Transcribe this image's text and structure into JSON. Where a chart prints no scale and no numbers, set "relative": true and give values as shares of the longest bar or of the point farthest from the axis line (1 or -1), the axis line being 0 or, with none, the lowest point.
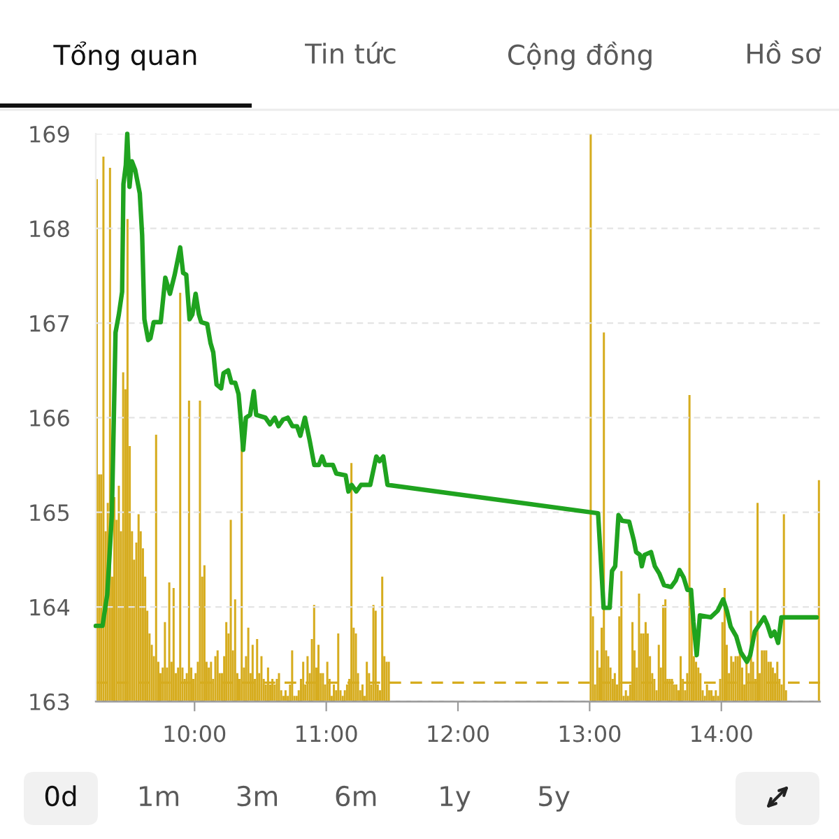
{
  "chart_data": [
    {
      "type": "bar",
      "relative": true,
      "color": "#d6ac1e",
      "xlim": [
        9.25,
        14.75
      ],
      "tick_labels": false,
      "x": [
        9.25,
        9.267,
        9.283,
        9.3,
        9.317,
        9.333,
        9.35,
        9.367,
        9.383,
        9.4,
        9.417,
        9.433,
        9.45,
        9.467,
        9.483,
        9.5,
        9.517,
        9.533,
        9.55,
        9.567,
        9.583,
        9.6,
        9.617,
        9.633,
        9.65,
        9.667,
        9.683,
        9.7,
        9.717,
        9.733,
        9.75,
        9.767,
        9.783,
        9.8,
        9.817,
        9.833,
        9.85,
        9.867,
        9.883,
        9.9,
        9.917,
        9.933,
        9.95,
        9.967,
        9.983,
        10,
        10.017,
        10.033,
        10.05,
        10.067,
        10.083,
        10.1,
        10.117,
        10.133,
        10.15,
        10.167,
        10.183,
        10.2,
        10.217,
        10.233,
        10.25,
        10.267,
        10.283,
        10.3,
        10.317,
        10.333,
        10.35,
        10.367,
        10.383,
        10.4,
        10.417,
        10.433,
        10.45,
        10.467,
        10.483,
        10.5,
        10.517,
        10.533,
        10.55,
        10.567,
        10.583,
        10.6,
        10.617,
        10.633,
        10.65,
        10.667,
        10.683,
        10.7,
        10.717,
        10.733,
        10.75,
        10.767,
        10.783,
        10.8,
        10.817,
        10.833,
        10.85,
        10.867,
        10.883,
        10.9,
        10.917,
        10.933,
        10.95,
        10.967,
        10.983,
        11,
        11.017,
        11.033,
        11.05,
        11.067,
        11.083,
        11.1,
        11.117,
        11.133,
        11.15,
        11.167,
        11.183,
        11.2,
        11.217,
        11.233,
        11.25,
        11.267,
        11.283,
        11.3,
        11.317,
        11.333,
        11.35,
        11.367,
        11.383,
        11.4,
        11.417,
        11.433,
        11.45,
        11.467,
        13,
        13.017,
        13.033,
        13.05,
        13.067,
        13.083,
        13.1,
        13.117,
        13.133,
        13.15,
        13.167,
        13.183,
        13.2,
        13.217,
        13.233,
        13.25,
        13.267,
        13.283,
        13.3,
        13.317,
        13.333,
        13.35,
        13.367,
        13.383,
        13.4,
        13.417,
        13.433,
        13.45,
        13.467,
        13.483,
        13.5,
        13.517,
        13.533,
        13.55,
        13.567,
        13.583,
        13.6,
        13.617,
        13.633,
        13.65,
        13.667,
        13.683,
        13.7,
        13.717,
        13.733,
        13.75,
        13.767,
        13.783,
        13.8,
        13.817,
        13.833,
        13.85,
        13.867,
        13.883,
        13.9,
        13.917,
        13.933,
        13.95,
        13.967,
        13.983,
        14,
        14.017,
        14.033,
        14.05,
        14.067,
        14.083,
        14.1,
        14.117,
        14.133,
        14.15,
        14.167,
        14.183,
        14.2,
        14.217,
        14.233,
        14.25,
        14.267,
        14.283,
        14.3,
        14.317,
        14.333,
        14.35,
        14.367,
        14.383,
        14.4,
        14.417,
        14.433,
        14.45,
        14.467,
        14.483,
        14.733
      ],
      "values": [
        0.92,
        0.4,
        0.4,
        0.96,
        0.3,
        0.35,
        0.94,
        0.22,
        0.36,
        0.32,
        0.38,
        0.3,
        0.58,
        0.55,
        0.85,
        0.45,
        0.3,
        0.25,
        0.28,
        0.33,
        0.3,
        0.27,
        0.22,
        0.16,
        0.12,
        0.1,
        0.08,
        0.47,
        0.07,
        0.05,
        0.06,
        0.14,
        0.06,
        0.21,
        0.07,
        0.2,
        0.05,
        0.06,
        0.72,
        0.06,
        0.04,
        0.05,
        0.53,
        0.06,
        0.04,
        0.05,
        0.07,
        0.53,
        0.22,
        0.24,
        0.07,
        0.06,
        0.07,
        0.04,
        0.08,
        0.09,
        0.05,
        0.05,
        0.08,
        0.14,
        0.12,
        0.32,
        0.09,
        0.18,
        0.05,
        0.04,
        0.46,
        0.06,
        0.08,
        0.13,
        0.05,
        0.1,
        0.04,
        0.11,
        0.05,
        0.08,
        0.04,
        0.03,
        0.06,
        0.03,
        0.04,
        0.03,
        0.04,
        0.05,
        0.02,
        0.01,
        0.02,
        0.01,
        0.03,
        0.09,
        0.01,
        0.01,
        0.02,
        0.04,
        0.07,
        0.03,
        0.08,
        0.05,
        0.11,
        0.17,
        0.06,
        0.1,
        0.05,
        0.05,
        0.03,
        0.07,
        0.04,
        0.01,
        0.03,
        0.02,
        0.12,
        0.02,
        0.01,
        0.02,
        0.03,
        0.04,
        0.42,
        0.13,
        0.12,
        0.05,
        0.02,
        0.03,
        0.01,
        0.07,
        0.05,
        0.03,
        0.17,
        0.16,
        0.03,
        0.02,
        0.22,
        0.08,
        0.07,
        0.07,
        1.0,
        0.15,
        0.03,
        0.09,
        0.06,
        0.13,
        0.65,
        0.09,
        0.08,
        0.06,
        0.04,
        0.05,
        0.03,
        0.15,
        0.23,
        0.01,
        0.02,
        0.01,
        0.03,
        0.14,
        0.09,
        0.06,
        0.19,
        0.12,
        0.12,
        0.14,
        0.12,
        0.08,
        0.05,
        0.04,
        0.02,
        0.1,
        0.06,
        0.17,
        0.18,
        0.04,
        0.04,
        0.04,
        0.03,
        0.03,
        0.02,
        0.08,
        0.04,
        0.02,
        0.05,
        0.54,
        0.16,
        0.08,
        0.07,
        0.06,
        0.05,
        0.02,
        0.01,
        0.03,
        0.02,
        0.02,
        0.01,
        0.02,
        0.01,
        0.04,
        0.14,
        0.2,
        0.1,
        0.05,
        0.08,
        0.07,
        0.08,
        0.08,
        0.09,
        0.06,
        0.03,
        0.07,
        0.05,
        0.16,
        0.07,
        0.04,
        0.35,
        0.05,
        0.09,
        0.09,
        0.09,
        0.07,
        0.07,
        0.06,
        0.05,
        0.07,
        0.04,
        0.03,
        0.33,
        0.02,
        0.39
      ]
    },
    {
      "type": "line",
      "color": "#1fa31f",
      "annotations": [
        "Tổng quan",
        "Tin tức",
        "Cộng đồng",
        "Hồ sơ",
        "0d",
        "1m",
        "3m",
        "6m",
        "1y",
        "5y"
      ],
      "xlim": [
        9.25,
        14.75
      ],
      "xticks": [
        {
          "value": 10,
          "label": "10:00"
        },
        {
          "value": 11,
          "label": "11:00"
        },
        {
          "value": 12,
          "label": "12:00"
        },
        {
          "value": 13,
          "label": "13:00"
        },
        {
          "value": 14,
          "label": "14:00"
        }
      ],
      "ylim": [
        163,
        169
      ],
      "yticks": [
        163,
        164,
        165,
        166,
        167,
        168,
        169
      ],
      "grid": "y",
      "ref_lines": [
        {
          "axis": "y",
          "value": 163.2,
          "color": "#d6ac1e",
          "line_style": "dashed"
        }
      ],
      "x": [
        9.25,
        9.301,
        9.337,
        9.372,
        9.39,
        9.4,
        9.425,
        9.45,
        9.46,
        9.478,
        9.489,
        9.506,
        9.524,
        9.549,
        9.584,
        9.602,
        9.619,
        9.648,
        9.665,
        9.69,
        9.743,
        9.778,
        9.813,
        9.849,
        9.891,
        9.913,
        9.937,
        9.962,
        9.983,
        10.008,
        10.033,
        10.05,
        10.096,
        10.121,
        10.142,
        10.167,
        10.202,
        10.22,
        10.255,
        10.28,
        10.309,
        10.334,
        10.355,
        10.369,
        10.39,
        10.422,
        10.45,
        10.468,
        10.538,
        10.573,
        10.609,
        10.637,
        10.672,
        10.708,
        10.743,
        10.778,
        10.803,
        10.838,
        10.874,
        10.909,
        10.944,
        10.969,
        10.991,
        11.051,
        11.076,
        11.147,
        11.168,
        11.193,
        11.228,
        11.264,
        11.334,
        11.38,
        11.405,
        11.433,
        11.465,
        13.064,
        13.106,
        13.152,
        13.17,
        13.194,
        13.219,
        13.247,
        13.3,
        13.336,
        13.353,
        13.382,
        13.396,
        13.417,
        13.466,
        13.495,
        13.53,
        13.565,
        13.618,
        13.654,
        13.682,
        13.714,
        13.742,
        13.77,
        13.788,
        13.813,
        13.837,
        13.919,
        13.972,
        14.014,
        14.042,
        14.071,
        14.113,
        14.148,
        14.194,
        14.219,
        14.254,
        14.325,
        14.35,
        14.378,
        14.403,
        14.431,
        14.456,
        14.724
      ],
      "values": [
        163.8,
        163.8,
        164.13,
        164.97,
        166.2,
        166.9,
        167.09,
        167.33,
        168.47,
        168.67,
        169.0,
        168.44,
        168.71,
        168.62,
        168.37,
        167.93,
        167.04,
        166.82,
        166.84,
        167.01,
        167.01,
        167.48,
        167.31,
        167.51,
        167.8,
        167.53,
        167.51,
        167.04,
        167.09,
        167.31,
        167.09,
        167.01,
        166.99,
        166.79,
        166.69,
        166.35,
        166.31,
        166.47,
        166.5,
        166.37,
        166.37,
        166.25,
        165.91,
        165.66,
        166.0,
        166.03,
        166.28,
        166.03,
        166.0,
        165.93,
        166.0,
        165.91,
        165.98,
        166.0,
        165.91,
        165.91,
        165.81,
        166.0,
        165.76,
        165.5,
        165.5,
        165.59,
        165.5,
        165.5,
        165.41,
        165.39,
        165.22,
        165.29,
        165.22,
        165.29,
        165.29,
        165.59,
        165.54,
        165.59,
        165.29,
        164.99,
        163.99,
        163.99,
        164.38,
        164.43,
        164.97,
        164.91,
        164.9,
        164.7,
        164.58,
        164.55,
        164.43,
        164.55,
        164.58,
        164.43,
        164.35,
        164.23,
        164.21,
        164.28,
        164.39,
        164.31,
        164.18,
        164.18,
        163.84,
        163.49,
        163.91,
        163.89,
        163.96,
        164.08,
        163.96,
        163.79,
        163.69,
        163.52,
        163.42,
        163.49,
        163.74,
        163.89,
        163.81,
        163.69,
        163.74,
        163.62,
        163.89,
        163.89
      ]
    }
  ]
}
